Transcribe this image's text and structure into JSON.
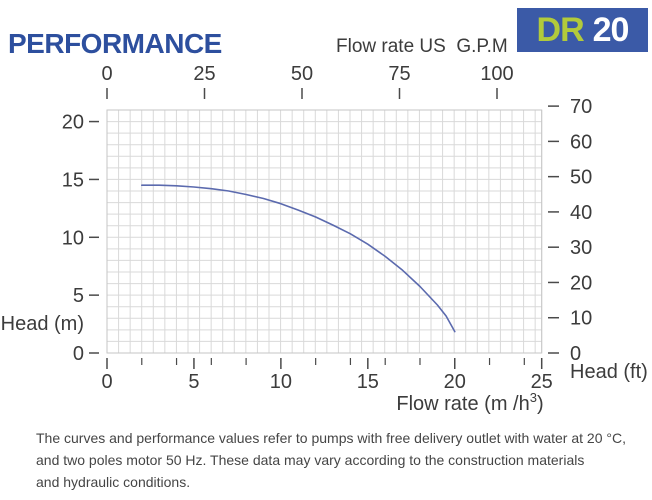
{
  "header": {
    "title": "PERFORMANCE",
    "top_axis_label": "Flow rate US  G.P.M",
    "model_badge": {
      "series": "DR",
      "size": "20"
    }
  },
  "footer": {
    "lines": [
      "The curves and performance values refer to pumps with free delivery outlet with water at 20 °C,",
      "and two poles motor 50 Hz. These data may vary according to the construction materials",
      "and hydraulic conditions."
    ]
  },
  "colors": {
    "brand_blue": "#2d4f9e",
    "badge_blue": "#3b5aa7",
    "badge_green": "#b2ca3b",
    "curve_blue": "#5b6aae",
    "grid_gray": "#d9d9d9",
    "border_gray": "#c6c6c6",
    "tick_gray": "#4a4a4a",
    "text_dark": "#3c3c3c"
  },
  "chart_data": {
    "type": "line",
    "title": "",
    "x_axis_bottom": {
      "label_prefix": "Flow rate  (m /h",
      "label_sup": "3",
      "label_suffix": ")",
      "major_ticks": [
        0,
        5,
        10,
        15,
        20,
        25
      ],
      "minor_ticks": [
        2,
        4,
        6,
        8,
        12,
        14,
        16,
        18,
        22,
        24
      ],
      "range": [
        0,
        25
      ]
    },
    "x_axis_top": {
      "label": "Flow rate US  G.P.M",
      "ticks": [
        0,
        25,
        50,
        75,
        100
      ],
      "range": [
        0,
        100
      ],
      "unit": "US GPM"
    },
    "y_axis_left": {
      "label": "Head (m)",
      "ticks": [
        0,
        5,
        10,
        15,
        20
      ],
      "range": [
        0,
        21
      ]
    },
    "y_axis_right": {
      "label": "Head (ft)",
      "ticks": [
        0,
        10,
        20,
        30,
        40,
        50,
        60,
        70
      ],
      "range": [
        0,
        73
      ]
    },
    "grid": "fine square graph-paper grid, 1 m per cell",
    "legend": "none",
    "series": [
      {
        "name": "DR 20 head curve",
        "points": [
          [
            2,
            14.5
          ],
          [
            3,
            14.5
          ],
          [
            4,
            14.45
          ],
          [
            5,
            14.35
          ],
          [
            6,
            14.2
          ],
          [
            7,
            14.0
          ],
          [
            8,
            13.7
          ],
          [
            9,
            13.35
          ],
          [
            10,
            12.9
          ],
          [
            11,
            12.35
          ],
          [
            12,
            11.75
          ],
          [
            13,
            11.05
          ],
          [
            14,
            10.3
          ],
          [
            15,
            9.4
          ],
          [
            16,
            8.35
          ],
          [
            17,
            7.15
          ],
          [
            18,
            5.75
          ],
          [
            19,
            4.15
          ],
          [
            19.5,
            3.2
          ],
          [
            20,
            1.85
          ]
        ]
      }
    ]
  }
}
